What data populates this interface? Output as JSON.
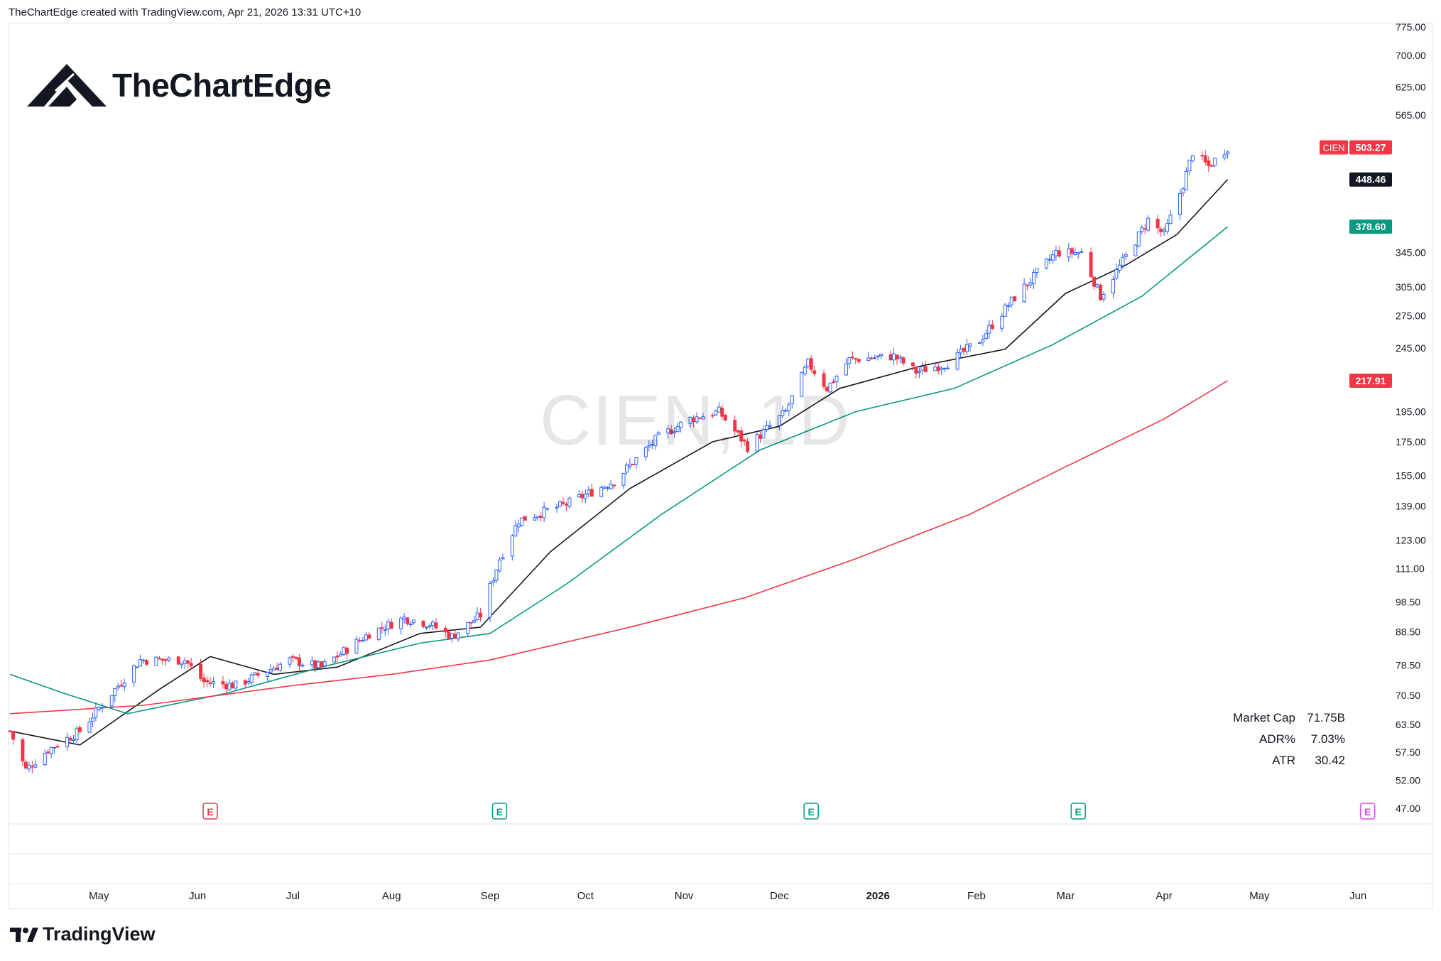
{
  "header": {
    "caption": "TheChartEdge created with TradingView.com, Apr 21, 2026 13:31 UTC+10"
  },
  "brand": {
    "name": "TheChartEdge"
  },
  "footer": {
    "brand": "TradingView"
  },
  "watermark": "CIEN, 1D",
  "stats": [
    {
      "label": "Market Cap",
      "value": "71.75B"
    },
    {
      "label": "ADR%",
      "value": "7.03%"
    },
    {
      "label": "ATR",
      "value": "30.42"
    }
  ],
  "colors": {
    "up": "#2962ff",
    "down": "#f23645",
    "ma_short": "#131722",
    "ma_mid": "#089981",
    "ma_long": "#f23645"
  },
  "chart_data": {
    "type": "candlestick",
    "symbol": "CIEN",
    "scale": "log",
    "ylim": [
      47,
      775
    ],
    "y_ticks": [
      "775.00",
      "700.00",
      "625.00",
      "565.00",
      "345.00",
      "305.00",
      "275.00",
      "245.00",
      "195.00",
      "175.00",
      "155.00",
      "139.00",
      "123.00",
      "111.00",
      "98.50",
      "88.50",
      "78.50",
      "70.50",
      "63.50",
      "57.50",
      "52.00",
      "47.00"
    ],
    "x_start": "2025-04-03",
    "x_end": "2026-06-25",
    "x_ticks": [
      {
        "label": "May",
        "date": "2025-05-01"
      },
      {
        "label": "Jun",
        "date": "2025-06-01"
      },
      {
        "label": "Jul",
        "date": "2025-07-01"
      },
      {
        "label": "Aug",
        "date": "2025-08-01"
      },
      {
        "label": "Sep",
        "date": "2025-09-01"
      },
      {
        "label": "Oct",
        "date": "2025-10-01"
      },
      {
        "label": "Nov",
        "date": "2025-11-01"
      },
      {
        "label": "Dec",
        "date": "2025-12-01"
      },
      {
        "label": "2026",
        "date": "2026-01-01",
        "bold": true
      },
      {
        "label": "Feb",
        "date": "2026-02-01"
      },
      {
        "label": "Mar",
        "date": "2026-03-01"
      },
      {
        "label": "Apr",
        "date": "2026-04-01"
      },
      {
        "label": "May",
        "date": "2026-05-01"
      },
      {
        "label": "Jun",
        "date": "2026-06-01"
      }
    ],
    "price_anchors": [
      [
        "2025-04-03",
        62
      ],
      [
        "2025-04-08",
        54
      ],
      [
        "2025-04-15",
        58
      ],
      [
        "2025-04-25",
        62
      ],
      [
        "2025-05-06",
        72
      ],
      [
        "2025-05-14",
        80
      ],
      [
        "2025-05-28",
        80
      ],
      [
        "2025-06-03",
        74
      ],
      [
        "2025-06-13",
        73
      ],
      [
        "2025-06-30",
        80
      ],
      [
        "2025-07-10",
        78
      ],
      [
        "2025-07-25",
        88
      ],
      [
        "2025-08-05",
        93
      ],
      [
        "2025-08-13",
        91
      ],
      [
        "2025-08-20",
        87
      ],
      [
        "2025-08-29",
        94
      ],
      [
        "2025-09-04",
        115
      ],
      [
        "2025-09-10",
        132
      ],
      [
        "2025-09-25",
        140
      ],
      [
        "2025-10-10",
        152
      ],
      [
        "2025-10-24",
        178
      ],
      [
        "2025-11-03",
        190
      ],
      [
        "2025-11-12",
        195
      ],
      [
        "2025-11-21",
        172
      ],
      [
        "2025-12-03",
        195
      ],
      [
        "2025-12-10",
        232
      ],
      [
        "2025-12-16",
        212
      ],
      [
        "2025-12-23",
        235
      ],
      [
        "2026-01-06",
        238
      ],
      [
        "2026-01-13",
        225
      ],
      [
        "2026-01-23",
        232
      ],
      [
        "2026-02-02",
        252
      ],
      [
        "2026-02-12",
        290
      ],
      [
        "2026-02-26",
        345
      ],
      [
        "2026-03-06",
        345
      ],
      [
        "2026-03-12",
        295
      ],
      [
        "2026-03-20",
        340
      ],
      [
        "2026-03-27",
        388
      ],
      [
        "2026-04-01",
        368
      ],
      [
        "2026-04-07",
        440
      ],
      [
        "2026-04-10",
        495
      ],
      [
        "2026-04-15",
        470
      ],
      [
        "2026-04-21",
        503.27
      ]
    ],
    "moving_averages": [
      {
        "color": "#131722",
        "points": [
          [
            "2025-04-03",
            62
          ],
          [
            "2025-04-25",
            59
          ],
          [
            "2025-05-20",
            72
          ],
          [
            "2025-06-05",
            81
          ],
          [
            "2025-06-25",
            76
          ],
          [
            "2025-07-15",
            78
          ],
          [
            "2025-08-10",
            88
          ],
          [
            "2025-08-29",
            90
          ],
          [
            "2025-09-20",
            118
          ],
          [
            "2025-10-15",
            148
          ],
          [
            "2025-11-10",
            175
          ],
          [
            "2025-12-01",
            185
          ],
          [
            "2025-12-20",
            212
          ],
          [
            "2026-01-15",
            230
          ],
          [
            "2026-02-10",
            244
          ],
          [
            "2026-03-01",
            298
          ],
          [
            "2026-03-20",
            330
          ],
          [
            "2026-04-05",
            368
          ],
          [
            "2026-04-21",
            448.46
          ]
        ],
        "last": "448.46"
      },
      {
        "color": "#089981",
        "points": [
          [
            "2025-04-03",
            76
          ],
          [
            "2025-04-20",
            71
          ],
          [
            "2025-05-10",
            66
          ],
          [
            "2025-06-10",
            71
          ],
          [
            "2025-07-10",
            78
          ],
          [
            "2025-08-10",
            85
          ],
          [
            "2025-09-01",
            88
          ],
          [
            "2025-09-25",
            105
          ],
          [
            "2025-10-25",
            135
          ],
          [
            "2025-11-25",
            170
          ],
          [
            "2025-12-25",
            195
          ],
          [
            "2026-01-25",
            212
          ],
          [
            "2026-02-25",
            248
          ],
          [
            "2026-03-25",
            295
          ],
          [
            "2026-04-21",
            378.6
          ]
        ],
        "last": "378.60"
      },
      {
        "color": "#f23645",
        "points": [
          [
            "2025-04-03",
            66
          ],
          [
            "2025-05-15",
            68
          ],
          [
            "2025-07-01",
            73
          ],
          [
            "2025-08-01",
            76
          ],
          [
            "2025-09-01",
            80
          ],
          [
            "2025-10-15",
            90
          ],
          [
            "2025-11-20",
            100
          ],
          [
            "2025-12-25",
            115
          ],
          [
            "2026-01-30",
            135
          ],
          [
            "2026-03-01",
            160
          ],
          [
            "2026-04-01",
            190
          ],
          [
            "2026-04-21",
            217.91
          ]
        ],
        "last": "217.91"
      }
    ],
    "price_labels": [
      {
        "text": "503.27",
        "symbol": "CIEN",
        "value": 503.27,
        "bg": "#f23645"
      },
      {
        "text": "448.46",
        "value": 448.46,
        "bg": "#131722"
      },
      {
        "text": "378.60",
        "value": 378.6,
        "bg": "#089981"
      },
      {
        "text": "217.91",
        "value": 217.91,
        "bg": "#f23645"
      }
    ],
    "earnings_markers": [
      {
        "date": "2025-06-05",
        "label": "E",
        "color": "#f23645"
      },
      {
        "date": "2025-09-04",
        "label": "E",
        "color": "#089981"
      },
      {
        "date": "2025-12-11",
        "label": "E",
        "color": "#089981"
      },
      {
        "date": "2026-03-05",
        "label": "E",
        "color": "#089981"
      },
      {
        "date": "2026-06-04",
        "label": "E",
        "color": "#e040fb",
        "upcoming": true
      }
    ]
  }
}
